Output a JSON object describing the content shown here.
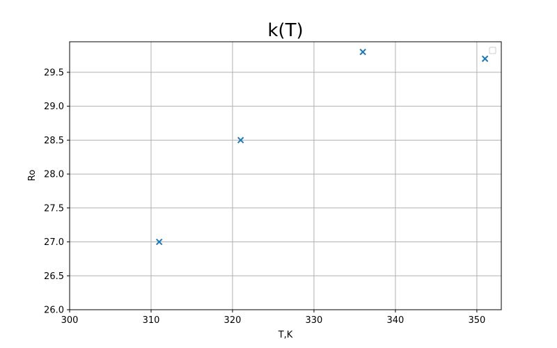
{
  "chart_data": {
    "type": "scatter",
    "title": "k(T)",
    "xlabel": "T,K",
    "ylabel": "Ro",
    "xlim": [
      300,
      353
    ],
    "ylim": [
      26.0,
      29.95
    ],
    "xticks": [
      300,
      310,
      320,
      330,
      340,
      350
    ],
    "yticks": [
      26.0,
      26.5,
      27.0,
      27.5,
      28.0,
      28.5,
      29.0,
      29.5
    ],
    "grid": true,
    "legend": "top-right",
    "marker": "x",
    "color": "#1f77b4",
    "x": [
      311,
      321,
      336,
      351
    ],
    "y": [
      27.0,
      28.5,
      29.8,
      29.7
    ]
  }
}
